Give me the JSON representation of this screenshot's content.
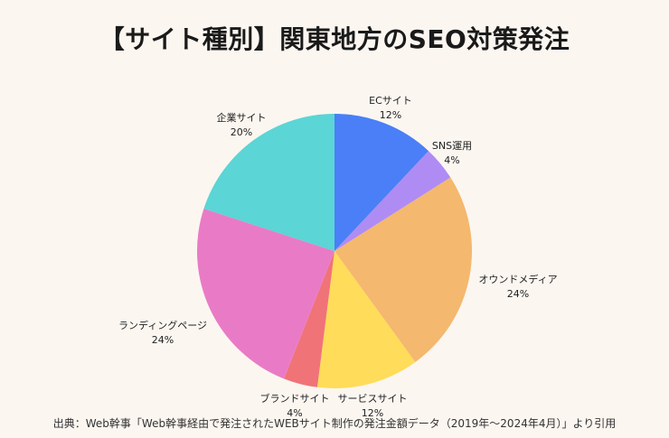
{
  "chart_data": {
    "type": "pie",
    "title": "【サイト種別】関東地方のSEO対策発注",
    "source": "出典：Web幹事「Web幹事経由で発注されたWEBサイト制作の発注金額データ（2019年〜2024年4月）」より引用",
    "slices": [
      {
        "label": "ECサイト",
        "pct_label": "12%",
        "value": 12,
        "color": "#4A7FF7"
      },
      {
        "label": "SNS運用",
        "pct_label": "4%",
        "value": 4,
        "color": "#AF8CF4"
      },
      {
        "label": "オウンドメディア",
        "pct_label": "24%",
        "value": 24,
        "color": "#F4B86E"
      },
      {
        "label": "サービスサイト",
        "pct_label": "12%",
        "value": 12,
        "color": "#FFDC5A"
      },
      {
        "label": "ブランドサイト",
        "pct_label": "4%",
        "value": 4,
        "color": "#F07378"
      },
      {
        "label": "ランディングページ",
        "pct_label": "24%",
        "value": 24,
        "color": "#E97BC6"
      },
      {
        "label": "企業サイト",
        "pct_label": "20%",
        "value": 20,
        "color": "#5BD5D5"
      }
    ]
  }
}
